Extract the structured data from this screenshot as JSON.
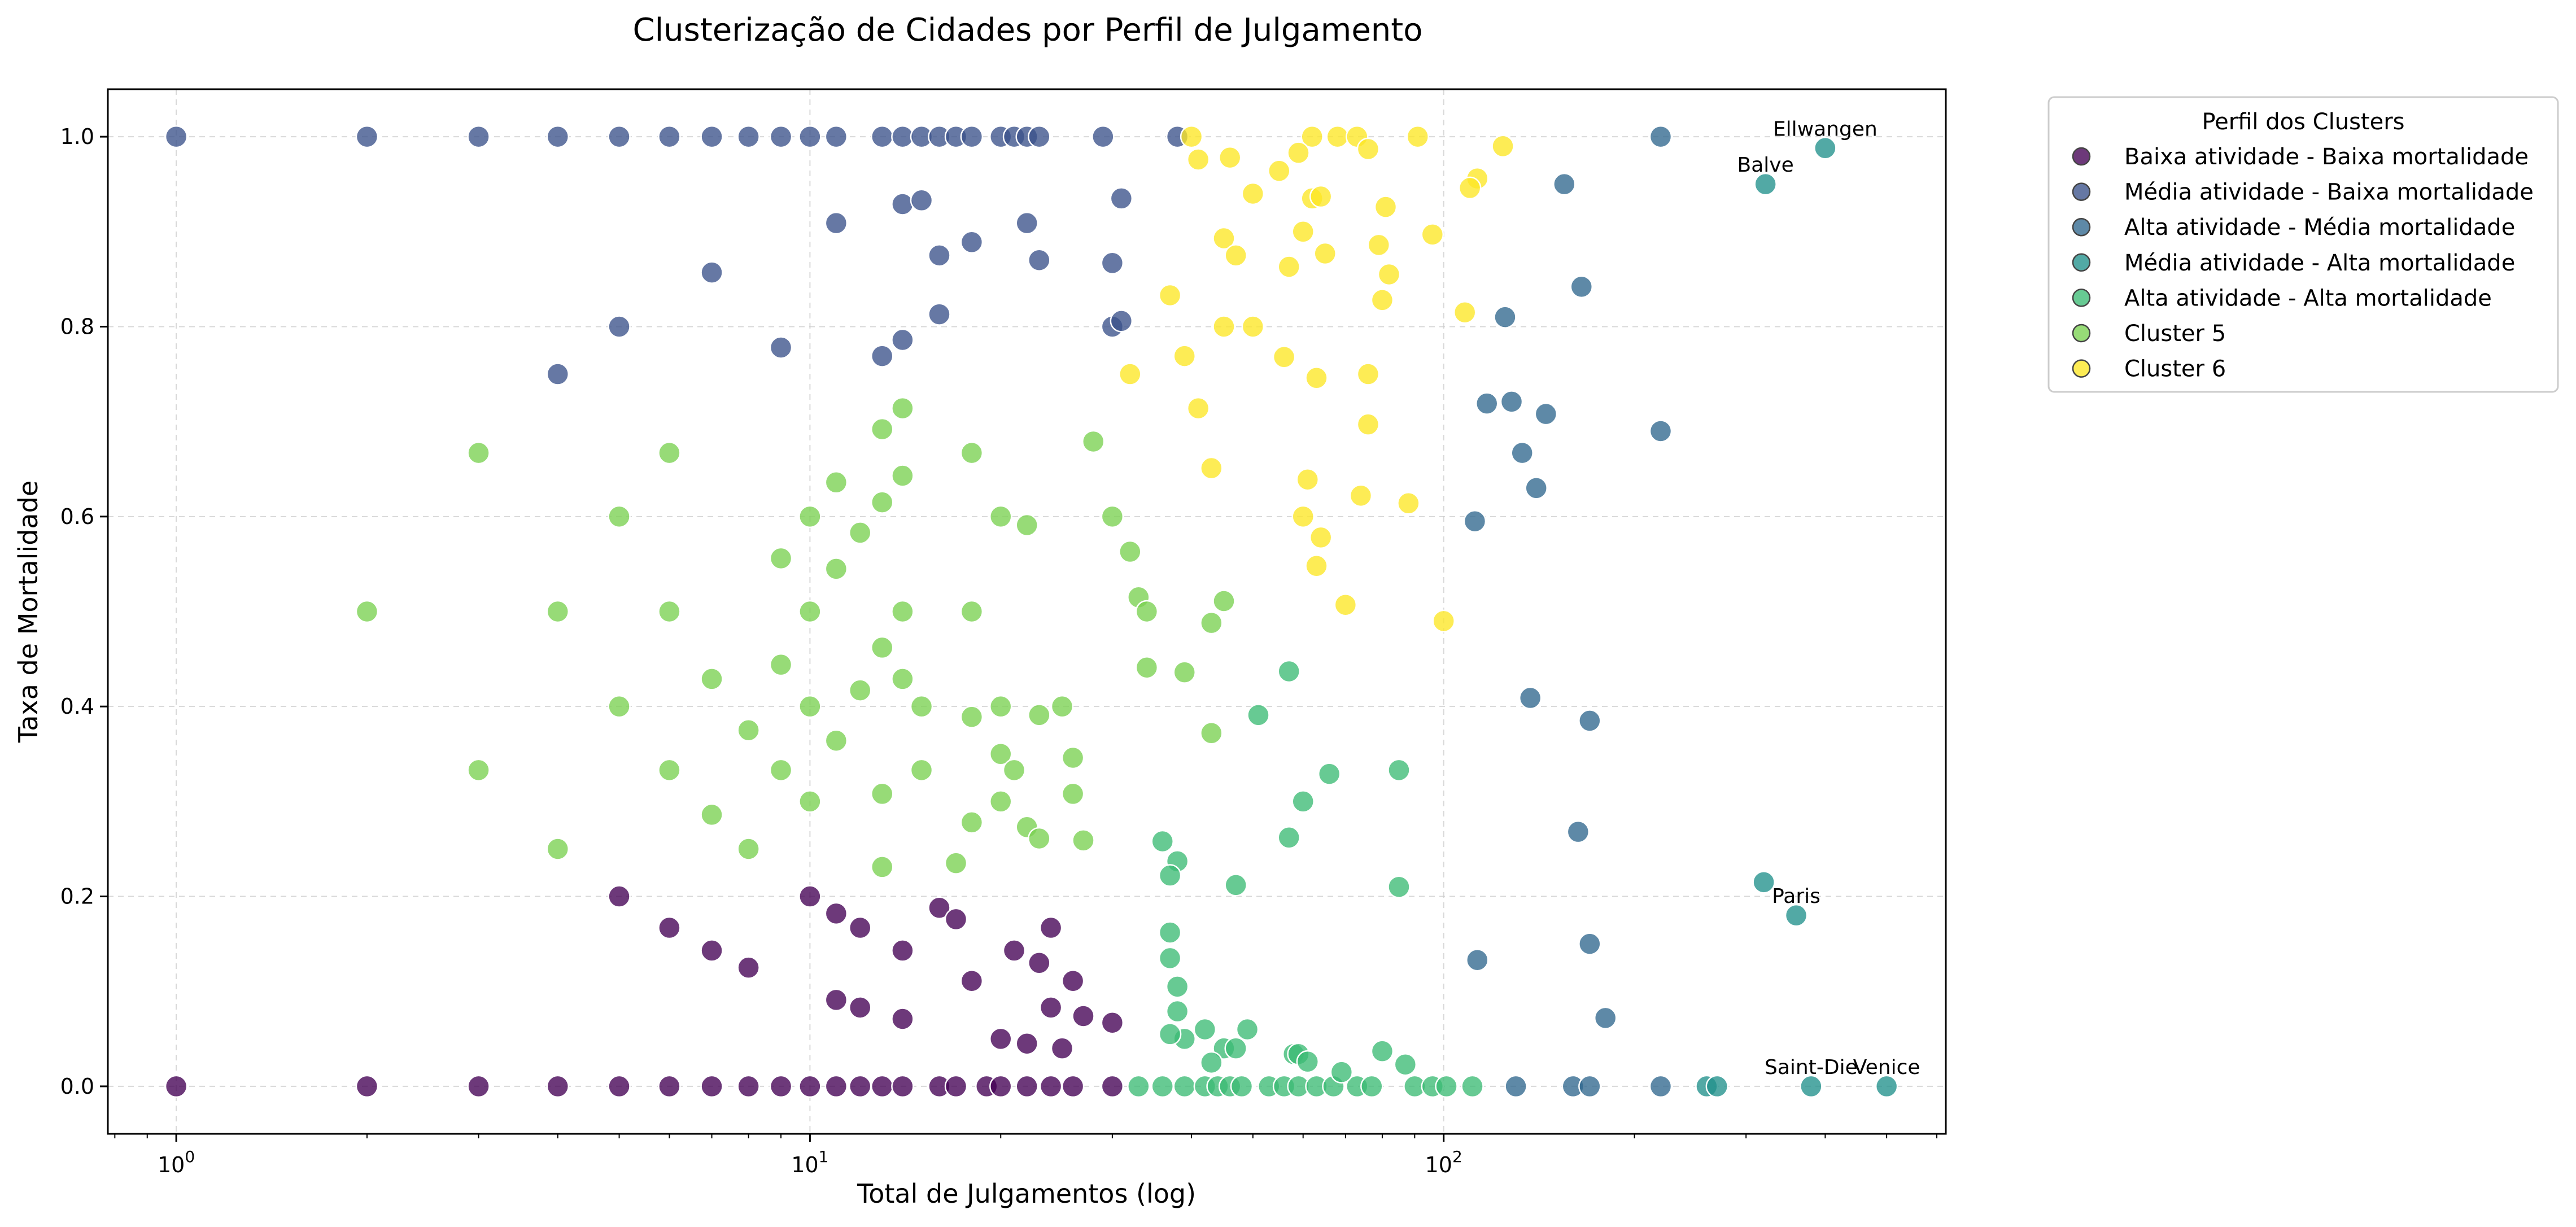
{
  "chart_data": {
    "type": "scatter",
    "title": "Clusterização de Cidades por Perfil de Julgamento",
    "xlabel": "Total de Julgamentos (log)",
    "ylabel": "Taxa de Mortalidade",
    "x_scale": "log",
    "xlim": [
      0.78,
      620
    ],
    "ylim": [
      -0.05,
      1.05
    ],
    "x_ticks": [
      {
        "value": 1,
        "base": "10",
        "exp": "0"
      },
      {
        "value": 10,
        "base": "10",
        "exp": "1"
      },
      {
        "value": 100,
        "base": "10",
        "exp": "2"
      }
    ],
    "y_ticks": [
      {
        "value": 0.0,
        "label": "0.0"
      },
      {
        "value": 0.2,
        "label": "0.2"
      },
      {
        "value": 0.4,
        "label": "0.4"
      },
      {
        "value": 0.6,
        "label": "0.6"
      },
      {
        "value": 0.8,
        "label": "0.8"
      },
      {
        "value": 1.0,
        "label": "1.0"
      }
    ],
    "grid": true,
    "legend": {
      "title": "Perfil dos Clusters",
      "placement": "outside-right"
    },
    "series": [
      {
        "name": "Baixa atividade - Baixa mortalidade",
        "color": "#440154",
        "points": [
          [
            1,
            0
          ],
          [
            2,
            0
          ],
          [
            3,
            0
          ],
          [
            4,
            0
          ],
          [
            5,
            0
          ],
          [
            6,
            0
          ],
          [
            7,
            0
          ],
          [
            8,
            0
          ],
          [
            9,
            0
          ],
          [
            10,
            0
          ],
          [
            11,
            0
          ],
          [
            12,
            0
          ],
          [
            13,
            0
          ],
          [
            14,
            0
          ],
          [
            16,
            0
          ],
          [
            17,
            0
          ],
          [
            19,
            0
          ],
          [
            20,
            0
          ],
          [
            22,
            0
          ],
          [
            24,
            0
          ],
          [
            26,
            0
          ],
          [
            30,
            0
          ],
          [
            5,
            0.2
          ],
          [
            6,
            0.167
          ],
          [
            7,
            0.143
          ],
          [
            8,
            0.125
          ],
          [
            10,
            0.2
          ],
          [
            11,
            0.182
          ],
          [
            12,
            0.167
          ],
          [
            14,
            0.143
          ],
          [
            16,
            0.188
          ],
          [
            17,
            0.176
          ],
          [
            18,
            0.111
          ],
          [
            21,
            0.143
          ],
          [
            23,
            0.13
          ],
          [
            24,
            0.167
          ],
          [
            26,
            0.111
          ],
          [
            11,
            0.091
          ],
          [
            12,
            0.083
          ],
          [
            14,
            0.071
          ],
          [
            24,
            0.083
          ],
          [
            25,
            0.04
          ],
          [
            27,
            0.074
          ],
          [
            30,
            0.067
          ],
          [
            20,
            0.05
          ],
          [
            22,
            0.045
          ]
        ]
      },
      {
        "name": "Média atividade - Baixa mortalidade",
        "color": "#3b528b",
        "points": [
          [
            1,
            1
          ],
          [
            2,
            1
          ],
          [
            3,
            1
          ],
          [
            4,
            1
          ],
          [
            5,
            1
          ],
          [
            6,
            1
          ],
          [
            7,
            1
          ],
          [
            8,
            1
          ],
          [
            9,
            1
          ],
          [
            10,
            1
          ],
          [
            11,
            1
          ],
          [
            13,
            1
          ],
          [
            14,
            1
          ],
          [
            15,
            1
          ],
          [
            16,
            1
          ],
          [
            17,
            1
          ],
          [
            18,
            1
          ],
          [
            20,
            1
          ],
          [
            21,
            1
          ],
          [
            22,
            1
          ],
          [
            23,
            1
          ],
          [
            29,
            1
          ],
          [
            38,
            1
          ],
          [
            11,
            0.909
          ],
          [
            14,
            0.929
          ],
          [
            15,
            0.933
          ],
          [
            16,
            0.875
          ],
          [
            18,
            0.889
          ],
          [
            22,
            0.909
          ],
          [
            23,
            0.87
          ],
          [
            31,
            0.935
          ],
          [
            30,
            0.8
          ],
          [
            31,
            0.806
          ],
          [
            30,
            0.867
          ],
          [
            13,
            0.769
          ],
          [
            14,
            0.786
          ],
          [
            16,
            0.813
          ],
          [
            4,
            0.75
          ],
          [
            5,
            0.8
          ],
          [
            7,
            0.857
          ],
          [
            9,
            0.778
          ]
        ]
      },
      {
        "name": "Alta atividade - Média mortalidade",
        "color": "#31688e",
        "points": [
          [
            220,
            1
          ],
          [
            155,
            0.95
          ],
          [
            165,
            0.842
          ],
          [
            125,
            0.81
          ],
          [
            117,
            0.719
          ],
          [
            128,
            0.721
          ],
          [
            145,
            0.708
          ],
          [
            220,
            0.69
          ],
          [
            133,
            0.667
          ],
          [
            140,
            0.63
          ],
          [
            112,
            0.595
          ],
          [
            137,
            0.409
          ],
          [
            170,
            0.385
          ],
          [
            163,
            0.268
          ],
          [
            170,
            0.15
          ],
          [
            180,
            0.072
          ],
          [
            113,
            0.133
          ],
          [
            130,
            0
          ],
          [
            160,
            0
          ],
          [
            170,
            0
          ],
          [
            220,
            0
          ]
        ]
      },
      {
        "name": "Média atividade - Alta mortalidade",
        "color": "#21918c",
        "points": [
          [
            400,
            0.988
          ],
          [
            322,
            0.95
          ],
          [
            320,
            0.215
          ],
          [
            360,
            0.18
          ],
          [
            380,
            0
          ],
          [
            500,
            0
          ],
          [
            260,
            0
          ],
          [
            270,
            0
          ]
        ]
      },
      {
        "name": "Alta atividade - Alta mortalidade",
        "color": "#3cbb75",
        "points": [
          [
            33,
            0
          ],
          [
            36,
            0
          ],
          [
            39,
            0
          ],
          [
            42,
            0
          ],
          [
            44,
            0
          ],
          [
            46,
            0
          ],
          [
            48,
            0
          ],
          [
            53,
            0
          ],
          [
            56,
            0
          ],
          [
            59,
            0
          ],
          [
            63,
            0
          ],
          [
            67,
            0
          ],
          [
            73,
            0
          ],
          [
            77,
            0
          ],
          [
            90,
            0
          ],
          [
            96,
            0
          ],
          [
            101,
            0
          ],
          [
            111,
            0
          ],
          [
            39,
            0.05
          ],
          [
            37,
            0.055
          ],
          [
            42,
            0.06
          ],
          [
            45,
            0.04
          ],
          [
            47,
            0.04
          ],
          [
            43,
            0.025
          ],
          [
            49,
            0.06
          ],
          [
            58,
            0.034
          ],
          [
            59,
            0.034
          ],
          [
            61,
            0.026
          ],
          [
            69,
            0.015
          ],
          [
            80,
            0.037
          ],
          [
            87,
            0.023
          ],
          [
            36,
            0.258
          ],
          [
            38,
            0.237
          ],
          [
            37,
            0.222
          ],
          [
            37,
            0.162
          ],
          [
            37,
            0.135
          ],
          [
            38,
            0.105
          ],
          [
            38,
            0.079
          ],
          [
            47,
            0.212
          ],
          [
            51,
            0.391
          ],
          [
            57,
            0.262
          ],
          [
            60,
            0.3
          ],
          [
            66,
            0.329
          ],
          [
            85,
            0.333
          ],
          [
            85,
            0.21
          ],
          [
            57,
            0.437
          ]
        ]
      },
      {
        "name": "Cluster 5",
        "color": "#7ad151",
        "points": [
          [
            2,
            0.5
          ],
          [
            3,
            0.667
          ],
          [
            3,
            0.333
          ],
          [
            4,
            0.5
          ],
          [
            4,
            0.25
          ],
          [
            5,
            0.6
          ],
          [
            5,
            0.4
          ],
          [
            6,
            0.5
          ],
          [
            6,
            0.333
          ],
          [
            7,
            0.286
          ],
          [
            8,
            0.25
          ],
          [
            11,
            0.636
          ],
          [
            11,
            0.545
          ],
          [
            12,
            0.417
          ],
          [
            14,
            0.429
          ],
          [
            18,
            0.278
          ],
          [
            6,
            0.667
          ],
          [
            7,
            0.429
          ],
          [
            8,
            0.375
          ],
          [
            9,
            0.556
          ],
          [
            9,
            0.444
          ],
          [
            9,
            0.333
          ],
          [
            10,
            0.6
          ],
          [
            10,
            0.5
          ],
          [
            10,
            0.4
          ],
          [
            10,
            0.3
          ],
          [
            11,
            0.364
          ],
          [
            12,
            0.583
          ],
          [
            13,
            0.692
          ],
          [
            13,
            0.615
          ],
          [
            13,
            0.462
          ],
          [
            13,
            0.308
          ],
          [
            13,
            0.231
          ],
          [
            14,
            0.714
          ],
          [
            14,
            0.643
          ],
          [
            14,
            0.5
          ],
          [
            15,
            0.4
          ],
          [
            15,
            0.333
          ],
          [
            17,
            0.235
          ],
          [
            18,
            0.667
          ],
          [
            18,
            0.5
          ],
          [
            18,
            0.389
          ],
          [
            20,
            0.6
          ],
          [
            20,
            0.4
          ],
          [
            20,
            0.35
          ],
          [
            20,
            0.3
          ],
          [
            21,
            0.333
          ],
          [
            22,
            0.591
          ],
          [
            22,
            0.273
          ],
          [
            23,
            0.391
          ],
          [
            23,
            0.261
          ],
          [
            25,
            0.4
          ],
          [
            26,
            0.346
          ],
          [
            26,
            0.308
          ],
          [
            27,
            0.259
          ],
          [
            28,
            0.679
          ],
          [
            30,
            0.6
          ],
          [
            32,
            0.563
          ],
          [
            33,
            0.515
          ],
          [
            34,
            0.5
          ],
          [
            34,
            0.441
          ],
          [
            39,
            0.436
          ],
          [
            43,
            0.488
          ],
          [
            45,
            0.511
          ],
          [
            43,
            0.372
          ]
        ]
      },
      {
        "name": "Cluster 6",
        "color": "#fde725",
        "points": [
          [
            40,
            1
          ],
          [
            62,
            1
          ],
          [
            68,
            1
          ],
          [
            73,
            1
          ],
          [
            91,
            1
          ],
          [
            41,
            0.976
          ],
          [
            46,
            0.978
          ],
          [
            55,
            0.964
          ],
          [
            59,
            0.983
          ],
          [
            76,
            0.987
          ],
          [
            124,
            0.99
          ],
          [
            113,
            0.956
          ],
          [
            110,
            0.946
          ],
          [
            50,
            0.94
          ],
          [
            62,
            0.935
          ],
          [
            64,
            0.937
          ],
          [
            81,
            0.926
          ],
          [
            45,
            0.893
          ],
          [
            47,
            0.875
          ],
          [
            60,
            0.9
          ],
          [
            65,
            0.877
          ],
          [
            79,
            0.886
          ],
          [
            96,
            0.897
          ],
          [
            57,
            0.863
          ],
          [
            82,
            0.855
          ],
          [
            37,
            0.833
          ],
          [
            80,
            0.828
          ],
          [
            108,
            0.815
          ],
          [
            45,
            0.8
          ],
          [
            50,
            0.8
          ],
          [
            39,
            0.769
          ],
          [
            56,
            0.768
          ],
          [
            63,
            0.746
          ],
          [
            76,
            0.75
          ],
          [
            32,
            0.75
          ],
          [
            41,
            0.714
          ],
          [
            76,
            0.697
          ],
          [
            43,
            0.651
          ],
          [
            61,
            0.639
          ],
          [
            74,
            0.622
          ],
          [
            88,
            0.614
          ],
          [
            60,
            0.6
          ],
          [
            64,
            0.578
          ],
          [
            63,
            0.548
          ],
          [
            70,
            0.507
          ],
          [
            100,
            0.49
          ]
        ]
      }
    ],
    "annotations": [
      {
        "text": "Ellwangen",
        "x": 400,
        "y": 0.988
      },
      {
        "text": "Balve",
        "x": 322,
        "y": 0.95
      },
      {
        "text": "Paris",
        "x": 360,
        "y": 0.18
      },
      {
        "text": "Saint-Die",
        "x": 380,
        "y": 0
      },
      {
        "text": "Venice",
        "x": 500,
        "y": 0
      }
    ]
  }
}
